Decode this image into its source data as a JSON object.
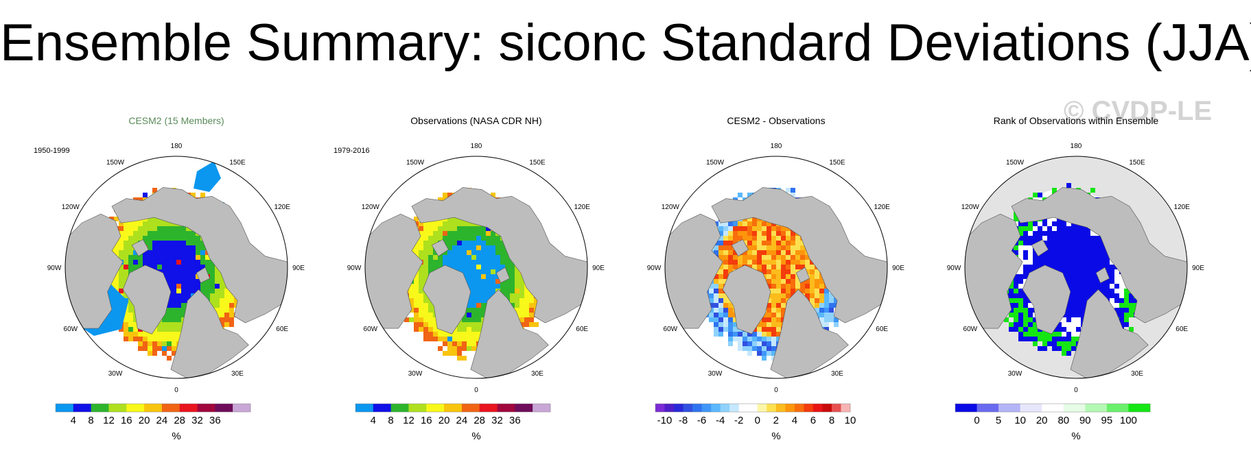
{
  "title": "Ensemble Summary: siconc Standard Deviations (JJA)",
  "watermark": "© CVDP-LE",
  "longitude_labels": [
    "180",
    "150E",
    "120E",
    "90E",
    "60E",
    "30E",
    "0",
    "30W",
    "60W",
    "90W",
    "120W",
    "150W"
  ],
  "colors": {
    "land": "#bdbdbd",
    "ocean": "#ffffff",
    "outside_grid": "#e3e3e3",
    "title_model": "#5a8a5a"
  },
  "chart_data": [
    {
      "type": "heatmap",
      "projection": "polar-stereographic-north",
      "title": "CESM2 (15 Members)",
      "period": "1950-1999",
      "unit": "%",
      "colorbar": {
        "ticks": [
          "4",
          "8",
          "12",
          "16",
          "20",
          "24",
          "28",
          "32",
          "36"
        ],
        "colors": [
          "#0b97f0",
          "#1010e8",
          "#2db42d",
          "#aee01e",
          "#f8f81a",
          "#f8c40e",
          "#f06414",
          "#e8141e",
          "#a0063c",
          "#6e0c5a",
          "#c8a6d6"
        ]
      }
    },
    {
      "type": "heatmap",
      "projection": "polar-stereographic-north",
      "title": "Observations (NASA CDR NH)",
      "period": "1979-2016",
      "unit": "%",
      "colorbar": {
        "ticks": [
          "4",
          "8",
          "12",
          "16",
          "20",
          "24",
          "28",
          "32",
          "36"
        ],
        "colors": [
          "#0b97f0",
          "#1010e8",
          "#2db42d",
          "#aee01e",
          "#f8f81a",
          "#f8c40e",
          "#f06414",
          "#e8141e",
          "#a0063c",
          "#6e0c5a",
          "#c8a6d6"
        ]
      }
    },
    {
      "type": "heatmap",
      "projection": "polar-stereographic-north",
      "title": "CESM2 - Observations",
      "period": "",
      "unit": "%",
      "colorbar": {
        "ticks": [
          "-10",
          "-8",
          "-6",
          "-4",
          "-2",
          "0",
          "2",
          "4",
          "6",
          "8",
          "10"
        ],
        "colors": [
          "#7b2bd4",
          "#4e1ec8",
          "#2828d8",
          "#3050e0",
          "#2f73f0",
          "#3f96f8",
          "#5ab8fc",
          "#8ed2fc",
          "#c6e8fe",
          "#ffffff",
          "#ffffff",
          "#fcf6a8",
          "#fce050",
          "#fcbc1c",
          "#fc960c",
          "#f86e0c",
          "#f43c0c",
          "#e81414",
          "#c80a0a",
          "#e85050",
          "#f8b4b4"
        ]
      }
    },
    {
      "type": "heatmap",
      "projection": "polar-stereographic-north",
      "title": "Rank of Observations within Ensemble",
      "period": "",
      "unit": "%",
      "colorbar": {
        "ticks": [
          "0",
          "5",
          "10",
          "20",
          "80",
          "90",
          "95",
          "100"
        ],
        "colors": [
          "#0a0ae6",
          "#6a6af0",
          "#b4b4f8",
          "#e6e6fc",
          "#ffffff",
          "#e6fce6",
          "#b4f8b4",
          "#6af06a",
          "#14e614"
        ]
      }
    }
  ]
}
